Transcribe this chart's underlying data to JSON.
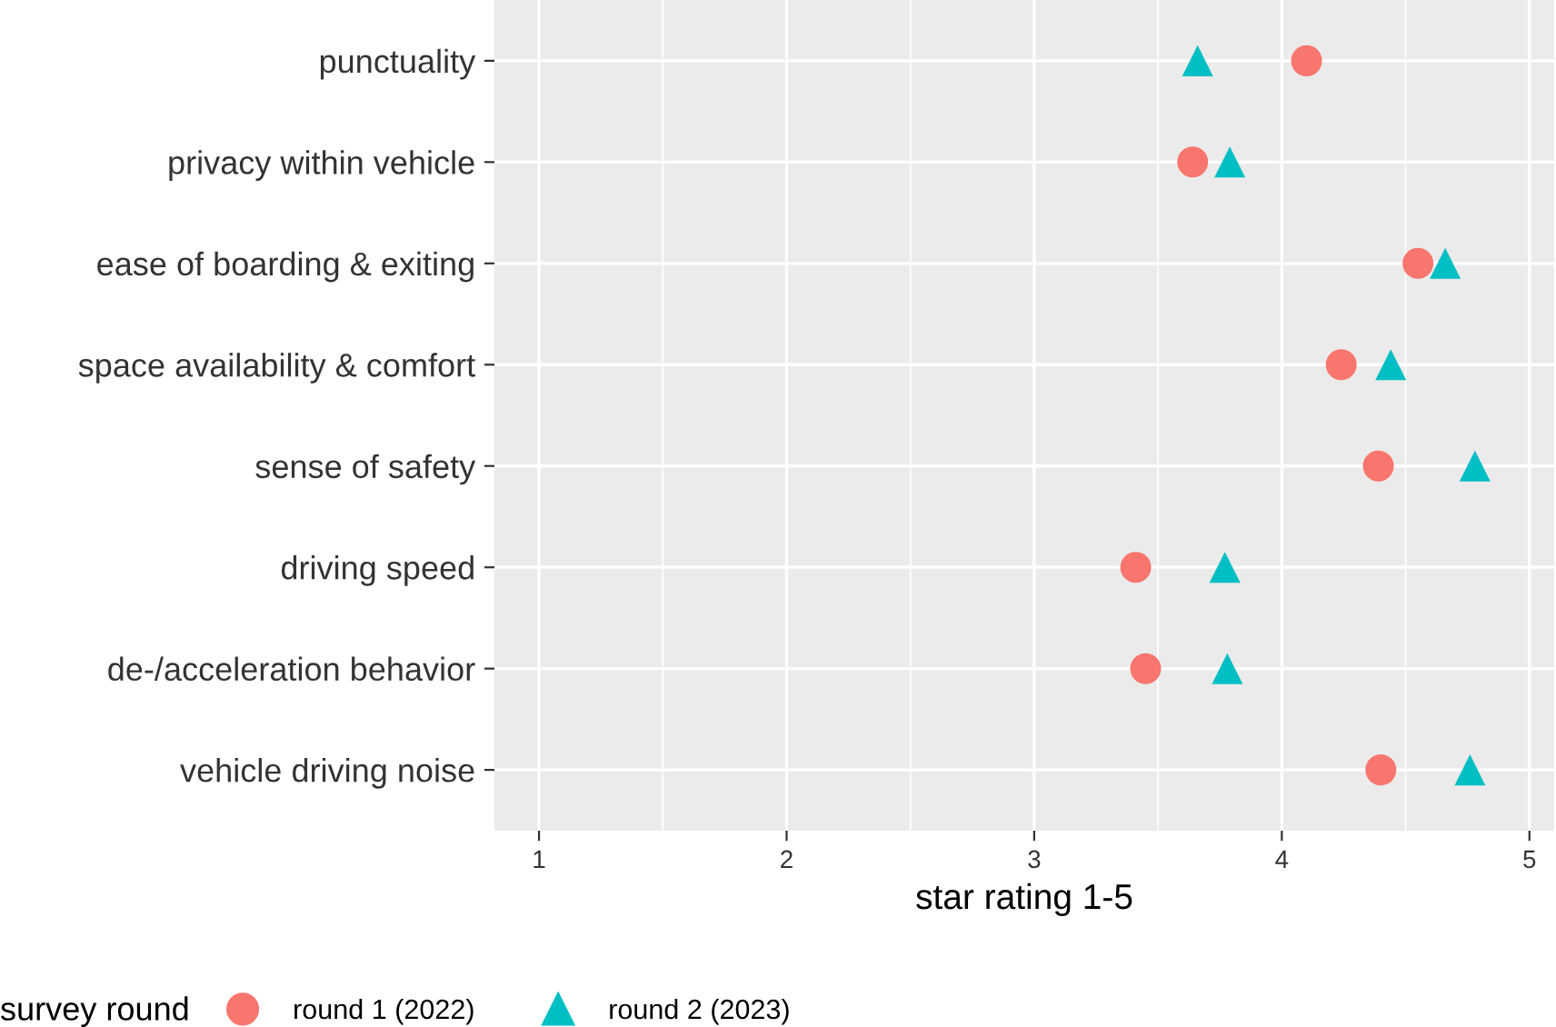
{
  "chart_data": {
    "type": "scatter",
    "xlabel": "star rating 1-5",
    "legend_title": "survey round",
    "categories": [
      "punctuality",
      "privacy within vehicle",
      "ease of boarding & exiting",
      "space availability & comfort",
      "sense of safety",
      "driving speed",
      "de-/acceleration behavior",
      "vehicle driving noise"
    ],
    "orientation": "horizontal",
    "series": [
      {
        "name": "round 1 (2022)",
        "color": "#f8766d",
        "marker": "circle",
        "values": [
          4.1,
          3.64,
          4.55,
          4.24,
          4.39,
          3.41,
          3.45,
          4.4
        ]
      },
      {
        "name": "round 2 (2023)",
        "color": "#00bfc4",
        "marker": "triangle",
        "values": [
          3.66,
          3.79,
          4.66,
          4.44,
          4.78,
          3.77,
          3.78,
          4.76
        ]
      }
    ],
    "xlim": [
      0.82,
      5.1
    ],
    "xticks": [
      1,
      2,
      3,
      4,
      5
    ],
    "grid": true,
    "legend": "bottom"
  }
}
